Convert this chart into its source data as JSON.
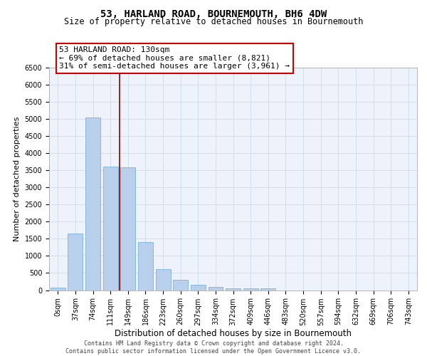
{
  "title": "53, HARLAND ROAD, BOURNEMOUTH, BH6 4DW",
  "subtitle": "Size of property relative to detached houses in Bournemouth",
  "xlabel": "Distribution of detached houses by size in Bournemouth",
  "ylabel": "Number of detached properties",
  "footer_line1": "Contains HM Land Registry data © Crown copyright and database right 2024.",
  "footer_line2": "Contains public sector information licensed under the Open Government Licence v3.0.",
  "bar_labels": [
    "0sqm",
    "37sqm",
    "74sqm",
    "111sqm",
    "149sqm",
    "186sqm",
    "223sqm",
    "260sqm",
    "297sqm",
    "334sqm",
    "372sqm",
    "409sqm",
    "446sqm",
    "483sqm",
    "520sqm",
    "557sqm",
    "594sqm",
    "632sqm",
    "669sqm",
    "706sqm",
    "743sqm"
  ],
  "bar_values": [
    70,
    1650,
    5050,
    3600,
    3580,
    1410,
    620,
    310,
    155,
    100,
    60,
    50,
    60,
    0,
    0,
    0,
    0,
    0,
    0,
    0,
    0
  ],
  "bar_color": "#b8d0eb",
  "bar_edge_color": "#6aaad4",
  "ylim_max": 6500,
  "yticks": [
    0,
    500,
    1000,
    1500,
    2000,
    2500,
    3000,
    3500,
    4000,
    4500,
    5000,
    5500,
    6000,
    6500
  ],
  "property_label": "53 HARLAND ROAD: 130sqm",
  "pct_smaller": "69% of detached houses are smaller (8,821)",
  "pct_larger": "31% of semi-detached houses are larger (3,961)",
  "vline_position": 3.51,
  "grid_color": "#d0dff0",
  "bg_color": "#edf2fb",
  "title_fontsize": 10,
  "subtitle_fontsize": 8.5,
  "tick_fontsize": 7,
  "ylabel_fontsize": 8,
  "xlabel_fontsize": 8.5,
  "ann_fontsize": 8,
  "footer_fontsize": 6
}
